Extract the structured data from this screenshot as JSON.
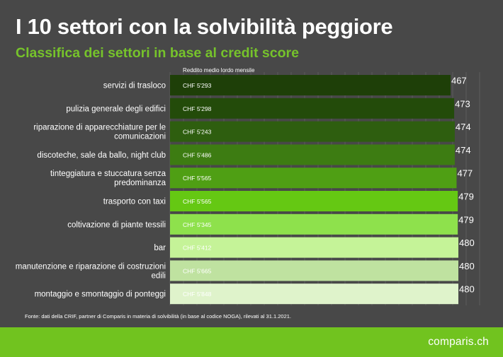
{
  "header": {
    "title": "I 10 settori con la solvibilità peggiore",
    "subtitle": "Classifica dei settori in base al credit score"
  },
  "chart_data": {
    "type": "bar",
    "orientation": "horizontal",
    "column_header": "Reddito medio lordo mensile",
    "categories": [
      [
        "servizi di trasloco"
      ],
      [
        "pulizia generale degli edifici"
      ],
      [
        "riparazione di apparecchiature per le",
        "comunicazioni"
      ],
      [
        "discoteche, sale da ballo, night club"
      ],
      [
        "tinteggiatura e stuccatura senza",
        "predominanza"
      ],
      [
        "trasporto con taxi"
      ],
      [
        "coltivazione di piante tessili"
      ],
      [
        "bar"
      ],
      [
        "manutenzione e riparazione di costruzioni",
        "edili"
      ],
      [
        "montaggio e smontaggio di ponteggi"
      ]
    ],
    "values": [
      467,
      473,
      474,
      474,
      477,
      479,
      479,
      480,
      480,
      480
    ],
    "income_labels": [
      "CHF 5'293",
      "CHF 5'298",
      "CHF 5'243",
      "CHF 5'486",
      "CHF 5'565",
      "CHF 5'565",
      "CHF 5'345",
      "CHF 5'412",
      "CHF 5'665",
      "CHF 5'848"
    ],
    "bar_colors": [
      "#1e3f08",
      "#234b0a",
      "#2e5e0f",
      "#3d7c12",
      "#4f9f14",
      "#65c813",
      "#8ee14c",
      "#c5f398",
      "#bfe2a0",
      "#dff3cb"
    ],
    "income_label_colors": [
      "#ffffff",
      "#ffffff",
      "#ffffff",
      "#ffffff",
      "#ffffff",
      "#ffffff",
      "#ffffff",
      "#ffffff",
      "#ffffff",
      "#ffffff"
    ],
    "grid": true,
    "legend": "none"
  },
  "source": "Fonte: dati della CRIF, partner di Comparis in materia di solvibilità (in base al codice NOGA), rilevati al 31.1.2021.",
  "brand": {
    "logo_text": "comparis.ch",
    "footer_color": "#71c31f"
  }
}
